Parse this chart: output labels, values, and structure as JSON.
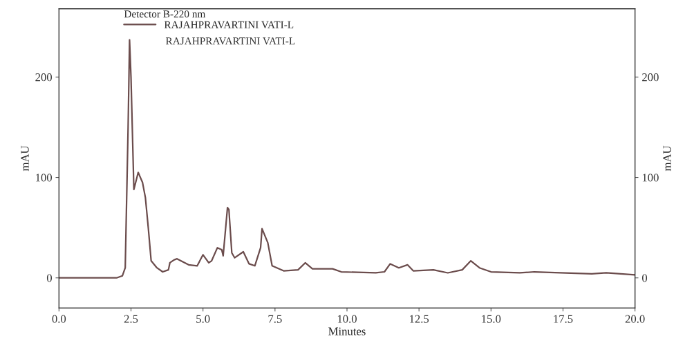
{
  "chart_data": {
    "type": "line",
    "xlabel": "Minutes",
    "ylabel": "mAU",
    "y2label": "mAU",
    "legend_title": "Detector B-220 nm",
    "annotations": [
      "RAJAHPRAVARTINI VATI-L"
    ],
    "x": [
      0,
      2.0,
      2.2,
      2.3,
      2.4,
      2.45,
      2.5,
      2.6,
      2.75,
      2.9,
      3.0,
      3.1,
      3.2,
      3.4,
      3.6,
      3.8,
      3.85,
      4.0,
      4.1,
      4.5,
      4.8,
      5.0,
      5.2,
      5.3,
      5.5,
      5.65,
      5.7,
      5.85,
      5.9,
      6.0,
      6.1,
      6.4,
      6.6,
      6.8,
      7.0,
      7.05,
      7.25,
      7.4,
      7.8,
      8.3,
      8.55,
      8.8,
      9.5,
      9.8,
      11.0,
      11.3,
      11.5,
      11.8,
      12.1,
      12.3,
      13.0,
      13.5,
      14.0,
      14.3,
      14.6,
      15.0,
      16.0,
      16.5,
      18.5,
      19.0,
      20.0
    ],
    "series": [
      {
        "name": "RAJAHPRAVARTINI VATI-L",
        "color": "#6b4c4c",
        "values": [
          0,
          0,
          2,
          10,
          150,
          237,
          200,
          88,
          105,
          95,
          80,
          50,
          17,
          10,
          6,
          8,
          15,
          18,
          19,
          13,
          12,
          23,
          15,
          17,
          30,
          28,
          22,
          70,
          68,
          25,
          20,
          26,
          14,
          12,
          30,
          49,
          35,
          12,
          7,
          8,
          15,
          9,
          9,
          6,
          5,
          6,
          14,
          10,
          13,
          7,
          8,
          5,
          8,
          17,
          10,
          6,
          5,
          6,
          4,
          5,
          3
        ]
      }
    ],
    "xlim": [
      0,
      20
    ],
    "xticks": [
      {
        "value": 0,
        "label": "0.0"
      },
      {
        "value": 2.5,
        "label": "2.5"
      },
      {
        "value": 5,
        "label": "5.0"
      },
      {
        "value": 7.5,
        "label": "7.5"
      },
      {
        "value": 10,
        "label": "10.0"
      },
      {
        "value": 12.5,
        "label": "12.5"
      },
      {
        "value": 15,
        "label": "15.0"
      },
      {
        "value": 17.5,
        "label": "17.5"
      },
      {
        "value": 20,
        "label": "20.0"
      }
    ],
    "ylim": [
      -30,
      268
    ],
    "yticks": [
      0,
      100,
      200
    ],
    "y2lim": [
      -30,
      268
    ],
    "y2ticks": [
      0,
      100,
      200
    ],
    "grid": false,
    "legend": "top left",
    "marker": "none",
    "line_style": "solid"
  }
}
